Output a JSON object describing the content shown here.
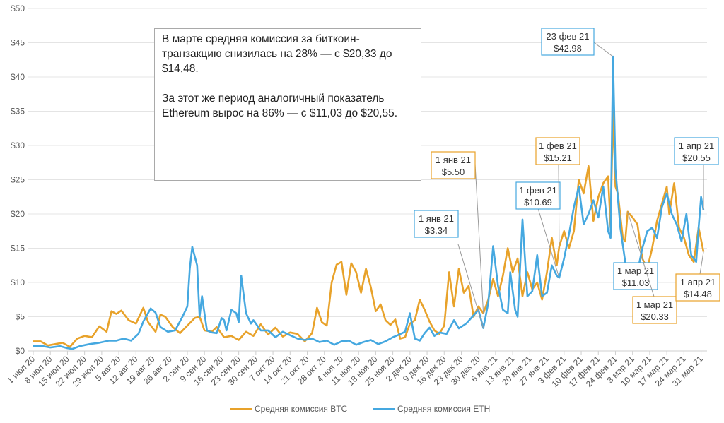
{
  "chart_data": {
    "type": "line",
    "title": "",
    "xlabel": "",
    "ylabel": "",
    "ylim": [
      0,
      50
    ],
    "y_ticks": [
      "$0",
      "$5",
      "$10",
      "$15",
      "$20",
      "$25",
      "$30",
      "$35",
      "$40",
      "$45",
      "$50"
    ],
    "y_tick_values": [
      0,
      5,
      10,
      15,
      20,
      25,
      30,
      35,
      40,
      45,
      50
    ],
    "x_range": [
      "2020-07-01",
      "2021-04-01"
    ],
    "x_tick_labels": [
      "1 июл 20",
      "8 июл 20",
      "15 июл 20",
      "22 июл 20",
      "29 июл 20",
      "5 авг 20",
      "12 авг 20",
      "19 авг 20",
      "26 авг 20",
      "2 сен 20",
      "9 сен 20",
      "16 сен 20",
      "23 сен 20",
      "30 сен 20",
      "7 окт 20",
      "14 окт 20",
      "21 окт 20",
      "28 окт 20",
      "4 ноя 20",
      "11 ноя 20",
      "18 ноя 20",
      "25 ноя 20",
      "2 дек 20",
      "9 дек 20",
      "16 дек 20",
      "23 дек 20",
      "30 дек 20",
      "6 янв 21",
      "13 янв 21",
      "20 янв 21",
      "27 янв 21",
      "3 фев 21",
      "10 фев 21",
      "17 фев 21",
      "24 фев 21",
      "3 мар 21",
      "10 мар 21",
      "17 мар 21",
      "24 мар 21",
      "31 мар 21"
    ],
    "grid": true,
    "legend_position": "bottom",
    "series": [
      {
        "name": "Средняя комиссия BTC",
        "color": "#e8a22a",
        "points": [
          [
            "2020-07-01",
            1.4
          ],
          [
            "2020-07-04",
            1.4
          ],
          [
            "2020-07-07",
            0.8
          ],
          [
            "2020-07-10",
            1.0
          ],
          [
            "2020-07-13",
            1.2
          ],
          [
            "2020-07-16",
            0.6
          ],
          [
            "2020-07-19",
            1.8
          ],
          [
            "2020-07-22",
            2.2
          ],
          [
            "2020-07-25",
            2.0
          ],
          [
            "2020-07-28",
            3.6
          ],
          [
            "2020-07-31",
            2.8
          ],
          [
            "2020-08-02",
            5.8
          ],
          [
            "2020-08-04",
            5.4
          ],
          [
            "2020-08-06",
            5.9
          ],
          [
            "2020-08-09",
            4.5
          ],
          [
            "2020-08-12",
            4.0
          ],
          [
            "2020-08-15",
            6.3
          ],
          [
            "2020-08-17",
            4.2
          ],
          [
            "2020-08-20",
            2.8
          ],
          [
            "2020-08-22",
            5.3
          ],
          [
            "2020-08-24",
            5.0
          ],
          [
            "2020-08-27",
            3.5
          ],
          [
            "2020-08-30",
            2.6
          ],
          [
            "2020-09-02",
            3.7
          ],
          [
            "2020-09-05",
            4.8
          ],
          [
            "2020-09-07",
            5.0
          ],
          [
            "2020-09-09",
            3.0
          ],
          [
            "2020-09-12",
            2.8
          ],
          [
            "2020-09-14",
            3.5
          ],
          [
            "2020-09-17",
            2.0
          ],
          [
            "2020-09-20",
            2.2
          ],
          [
            "2020-09-23",
            1.6
          ],
          [
            "2020-09-26",
            2.8
          ],
          [
            "2020-09-29",
            2.2
          ],
          [
            "2020-10-02",
            3.9
          ],
          [
            "2020-10-05",
            2.4
          ],
          [
            "2020-10-08",
            3.4
          ],
          [
            "2020-10-11",
            2.1
          ],
          [
            "2020-10-14",
            2.7
          ],
          [
            "2020-10-17",
            2.5
          ],
          [
            "2020-10-20",
            1.4
          ],
          [
            "2020-10-23",
            2.6
          ],
          [
            "2020-10-25",
            6.3
          ],
          [
            "2020-10-27",
            4.2
          ],
          [
            "2020-10-29",
            3.7
          ],
          [
            "2020-10-31",
            10.0
          ],
          [
            "2020-11-02",
            12.6
          ],
          [
            "2020-11-04",
            13.0
          ],
          [
            "2020-11-06",
            8.2
          ],
          [
            "2020-11-08",
            12.8
          ],
          [
            "2020-11-10",
            11.5
          ],
          [
            "2020-11-12",
            8.5
          ],
          [
            "2020-11-14",
            12.0
          ],
          [
            "2020-11-16",
            9.3
          ],
          [
            "2020-11-18",
            5.8
          ],
          [
            "2020-11-20",
            6.8
          ],
          [
            "2020-11-22",
            4.5
          ],
          [
            "2020-11-24",
            3.8
          ],
          [
            "2020-11-26",
            4.6
          ],
          [
            "2020-11-28",
            1.8
          ],
          [
            "2020-11-30",
            2.0
          ],
          [
            "2020-12-02",
            4.0
          ],
          [
            "2020-12-04",
            4.5
          ],
          [
            "2020-12-06",
            7.5
          ],
          [
            "2020-12-08",
            6.0
          ],
          [
            "2020-12-10",
            4.3
          ],
          [
            "2020-12-12",
            3.0
          ],
          [
            "2020-12-14",
            2.5
          ],
          [
            "2020-12-16",
            3.7
          ],
          [
            "2020-12-18",
            11.5
          ],
          [
            "2020-12-20",
            6.5
          ],
          [
            "2020-12-22",
            12.0
          ],
          [
            "2020-12-24",
            8.5
          ],
          [
            "2020-12-26",
            9.5
          ],
          [
            "2020-12-28",
            5.0
          ],
          [
            "2020-12-30",
            6.5
          ],
          [
            "2021-01-01",
            5.5
          ],
          [
            "2021-01-03",
            7.5
          ],
          [
            "2021-01-05",
            10.5
          ],
          [
            "2021-01-07",
            8.0
          ],
          [
            "2021-01-09",
            11.0
          ],
          [
            "2021-01-11",
            15.0
          ],
          [
            "2021-01-13",
            11.5
          ],
          [
            "2021-01-15",
            13.5
          ],
          [
            "2021-01-17",
            8.0
          ],
          [
            "2021-01-19",
            11.5
          ],
          [
            "2021-01-21",
            9.0
          ],
          [
            "2021-01-23",
            10.0
          ],
          [
            "2021-01-25",
            7.5
          ],
          [
            "2021-01-27",
            11.5
          ],
          [
            "2021-01-29",
            16.5
          ],
          [
            "2021-01-31",
            12.5
          ],
          [
            "2021-02-01",
            15.21
          ],
          [
            "2021-02-03",
            17.5
          ],
          [
            "2021-02-05",
            15.0
          ],
          [
            "2021-02-07",
            17.5
          ],
          [
            "2021-02-09",
            25.0
          ],
          [
            "2021-02-11",
            23.0
          ],
          [
            "2021-02-13",
            27.0
          ],
          [
            "2021-02-15",
            19.0
          ],
          [
            "2021-02-17",
            22.5
          ],
          [
            "2021-02-19",
            24.5
          ],
          [
            "2021-02-21",
            25.5
          ],
          [
            "2021-02-22",
            18.0
          ],
          [
            "2021-02-23",
            35.0
          ],
          [
            "2021-02-24",
            24.0
          ],
          [
            "2021-02-25",
            23.0
          ],
          [
            "2021-02-27",
            16.5
          ],
          [
            "2021-02-28",
            16.0
          ],
          [
            "2021-03-01",
            20.33
          ],
          [
            "2021-03-03",
            19.5
          ],
          [
            "2021-03-05",
            18.5
          ],
          [
            "2021-03-07",
            13.5
          ],
          [
            "2021-03-09",
            12.0
          ],
          [
            "2021-03-11",
            15.0
          ],
          [
            "2021-03-13",
            19.0
          ],
          [
            "2021-03-15",
            21.5
          ],
          [
            "2021-03-17",
            24.0
          ],
          [
            "2021-03-18",
            20.0
          ],
          [
            "2021-03-20",
            24.5
          ],
          [
            "2021-03-22",
            18.0
          ],
          [
            "2021-03-24",
            16.5
          ],
          [
            "2021-03-26",
            14.0
          ],
          [
            "2021-03-28",
            13.0
          ],
          [
            "2021-03-30",
            18.0
          ],
          [
            "2021-04-01",
            14.48
          ]
        ]
      },
      {
        "name": "Средняя комиссия ETH",
        "color": "#45a8e0",
        "points": [
          [
            "2020-07-01",
            0.7
          ],
          [
            "2020-07-05",
            0.7
          ],
          [
            "2020-07-08",
            0.5
          ],
          [
            "2020-07-12",
            0.7
          ],
          [
            "2020-07-15",
            0.4
          ],
          [
            "2020-07-17",
            0.3
          ],
          [
            "2020-07-20",
            0.7
          ],
          [
            "2020-07-24",
            1.0
          ],
          [
            "2020-07-28",
            1.2
          ],
          [
            "2020-08-01",
            1.5
          ],
          [
            "2020-08-04",
            1.5
          ],
          [
            "2020-08-07",
            1.8
          ],
          [
            "2020-08-10",
            1.5
          ],
          [
            "2020-08-13",
            2.5
          ],
          [
            "2020-08-15",
            4.3
          ],
          [
            "2020-08-18",
            6.2
          ],
          [
            "2020-08-20",
            5.6
          ],
          [
            "2020-08-22",
            3.5
          ],
          [
            "2020-08-25",
            2.8
          ],
          [
            "2020-08-28",
            3.0
          ],
          [
            "2020-08-31",
            5.0
          ],
          [
            "2020-09-02",
            6.5
          ],
          [
            "2020-09-03",
            12.0
          ],
          [
            "2020-09-04",
            15.2
          ],
          [
            "2020-09-06",
            12.5
          ],
          [
            "2020-09-07",
            5.0
          ],
          [
            "2020-09-08",
            8.0
          ],
          [
            "2020-09-10",
            3.0
          ],
          [
            "2020-09-12",
            2.7
          ],
          [
            "2020-09-14",
            2.6
          ],
          [
            "2020-09-16",
            4.8
          ],
          [
            "2020-09-17",
            4.5
          ],
          [
            "2020-09-18",
            3.0
          ],
          [
            "2020-09-20",
            6.0
          ],
          [
            "2020-09-22",
            5.5
          ],
          [
            "2020-09-23",
            4.2
          ],
          [
            "2020-09-24",
            11.0
          ],
          [
            "2020-09-26",
            5.5
          ],
          [
            "2020-09-28",
            4.0
          ],
          [
            "2020-09-29",
            4.5
          ],
          [
            "2020-10-02",
            3.0
          ],
          [
            "2020-10-05",
            3.0
          ],
          [
            "2020-10-08",
            2.0
          ],
          [
            "2020-10-11",
            2.8
          ],
          [
            "2020-10-14",
            2.3
          ],
          [
            "2020-10-17",
            1.8
          ],
          [
            "2020-10-20",
            1.6
          ],
          [
            "2020-10-23",
            1.8
          ],
          [
            "2020-10-26",
            1.3
          ],
          [
            "2020-10-29",
            1.5
          ],
          [
            "2020-11-01",
            0.9
          ],
          [
            "2020-11-04",
            1.4
          ],
          [
            "2020-11-07",
            1.5
          ],
          [
            "2020-11-10",
            0.9
          ],
          [
            "2020-11-13",
            1.3
          ],
          [
            "2020-11-16",
            1.6
          ],
          [
            "2020-11-19",
            1.0
          ],
          [
            "2020-11-22",
            1.4
          ],
          [
            "2020-11-25",
            2.0
          ],
          [
            "2020-11-27",
            2.3
          ],
          [
            "2020-11-30",
            2.8
          ],
          [
            "2020-12-02",
            5.5
          ],
          [
            "2020-12-04",
            1.8
          ],
          [
            "2020-12-06",
            1.5
          ],
          [
            "2020-12-08",
            2.6
          ],
          [
            "2020-12-10",
            3.4
          ],
          [
            "2020-12-12",
            2.2
          ],
          [
            "2020-12-14",
            2.7
          ],
          [
            "2020-12-17",
            2.5
          ],
          [
            "2020-12-20",
            4.5
          ],
          [
            "2020-12-22",
            3.3
          ],
          [
            "2020-12-25",
            4.0
          ],
          [
            "2020-12-28",
            5.2
          ],
          [
            "2020-12-30",
            6.0
          ],
          [
            "2021-01-01",
            3.34
          ],
          [
            "2021-01-03",
            7.0
          ],
          [
            "2021-01-05",
            15.3
          ],
          [
            "2021-01-07",
            9.5
          ],
          [
            "2021-01-09",
            6.0
          ],
          [
            "2021-01-11",
            5.5
          ],
          [
            "2021-01-12",
            11.5
          ],
          [
            "2021-01-14",
            6.0
          ],
          [
            "2021-01-15",
            5.0
          ],
          [
            "2021-01-17",
            19.2
          ],
          [
            "2021-01-19",
            8.0
          ],
          [
            "2021-01-21",
            8.7
          ],
          [
            "2021-01-23",
            14.0
          ],
          [
            "2021-01-25",
            8.0
          ],
          [
            "2021-01-27",
            8.5
          ],
          [
            "2021-01-29",
            12.5
          ],
          [
            "2021-01-31",
            11.0
          ],
          [
            "2021-02-01",
            10.69
          ],
          [
            "2021-02-03",
            13.5
          ],
          [
            "2021-02-05",
            17.0
          ],
          [
            "2021-02-07",
            21.0
          ],
          [
            "2021-02-09",
            24.0
          ],
          [
            "2021-02-11",
            18.5
          ],
          [
            "2021-02-13",
            20.0
          ],
          [
            "2021-02-15",
            22.0
          ],
          [
            "2021-02-17",
            19.5
          ],
          [
            "2021-02-19",
            24.0
          ],
          [
            "2021-02-21",
            17.5
          ],
          [
            "2021-02-22",
            16.5
          ],
          [
            "2021-02-23",
            42.98
          ],
          [
            "2021-02-24",
            26.5
          ],
          [
            "2021-02-26",
            18.0
          ],
          [
            "2021-02-28",
            13.0
          ],
          [
            "2021-03-01",
            11.03
          ],
          [
            "2021-03-03",
            12.0
          ],
          [
            "2021-03-05",
            11.5
          ],
          [
            "2021-03-07",
            15.0
          ],
          [
            "2021-03-09",
            17.5
          ],
          [
            "2021-03-11",
            18.0
          ],
          [
            "2021-03-13",
            16.5
          ],
          [
            "2021-03-15",
            21.0
          ],
          [
            "2021-03-17",
            23.0
          ],
          [
            "2021-03-19",
            20.0
          ],
          [
            "2021-03-21",
            18.5
          ],
          [
            "2021-03-23",
            16.0
          ],
          [
            "2021-03-25",
            20.0
          ],
          [
            "2021-03-27",
            14.0
          ],
          [
            "2021-03-29",
            13.0
          ],
          [
            "2021-03-30",
            18.0
          ],
          [
            "2021-03-31",
            22.5
          ],
          [
            "2021-04-01",
            20.55
          ]
        ]
      }
    ],
    "annotations": [
      {
        "series": 0,
        "date": "2021-01-01",
        "label": "1 янв 21",
        "value": "$5.50"
      },
      {
        "series": 1,
        "date": "2021-01-01",
        "label": "1 янв 21",
        "value": "$3.34"
      },
      {
        "series": 1,
        "date": "2021-02-01",
        "label": "1 фев 21",
        "value": "$10.69"
      },
      {
        "series": 0,
        "date": "2021-02-01",
        "label": "1 фев 21",
        "value": "$15.21"
      },
      {
        "series": 1,
        "date": "2021-02-23",
        "label": "23 фев 21",
        "value": "$42.98"
      },
      {
        "series": 1,
        "date": "2021-03-01",
        "label": "1 мар 21",
        "value": "$11.03"
      },
      {
        "series": 0,
        "date": "2021-03-01",
        "label": "1 мар 21",
        "value": "$20.33"
      },
      {
        "series": 1,
        "date": "2021-04-01",
        "label": "1 апр 21",
        "value": "$20.55"
      },
      {
        "series": 0,
        "date": "2021-04-01",
        "label": "1 апр 21",
        "value": "$14.48"
      }
    ]
  },
  "note": {
    "paragraph1": "В марте средняя комиссия за биткоин-транзакцию снизилась на 28% — с $20,33 до $14,48.",
    "paragraph2": "За этот же период аналогичный показатель Ethereum вырос на 86% — с $11,03 до $20,55."
  },
  "legend": {
    "btc": "Средняя комиссия BTC",
    "eth": "Средняя комиссия ETH"
  }
}
